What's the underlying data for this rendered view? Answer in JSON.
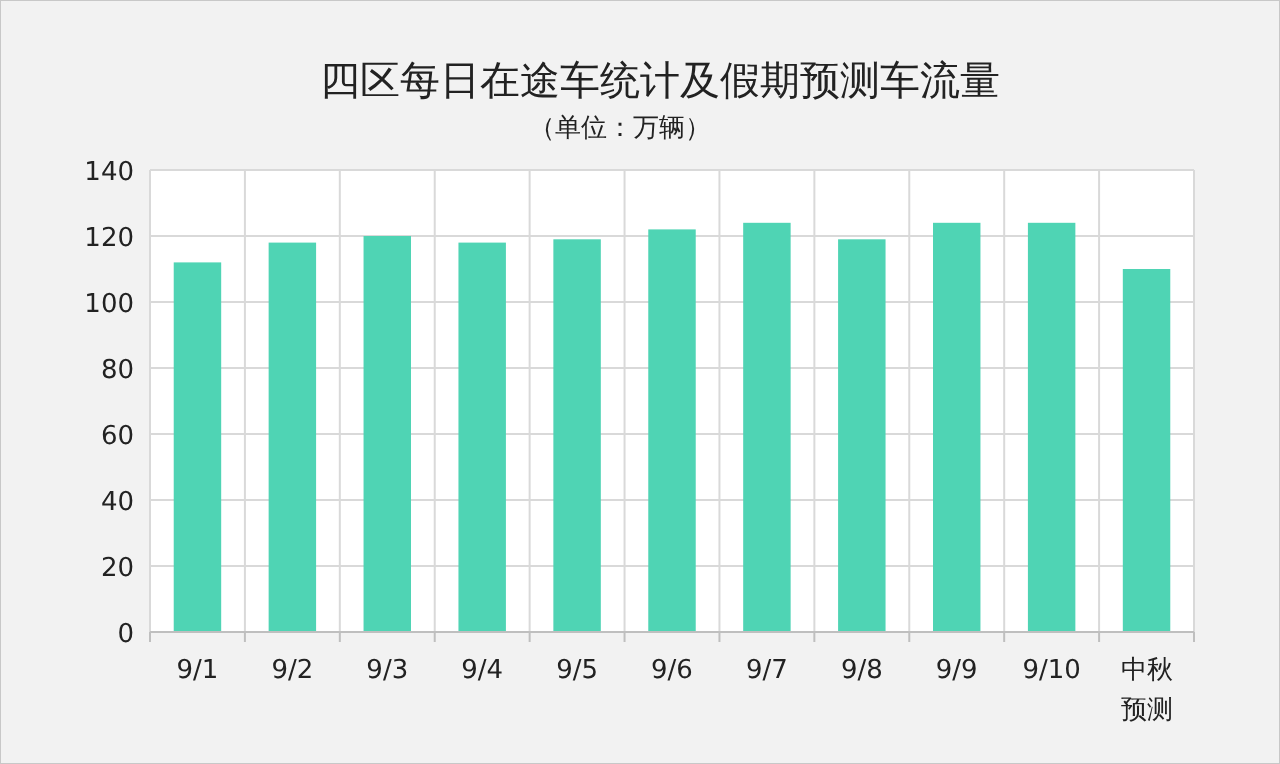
{
  "chart_data": {
    "type": "bar",
    "title": "四区每日在途车统计及假期预测车流量",
    "subtitle": "（单位：万辆）",
    "categories": [
      "9/1",
      "9/2",
      "9/3",
      "9/4",
      "9/5",
      "9/6",
      "9/7",
      "9/8",
      "9/9",
      "9/10",
      "中秋预测"
    ],
    "values": [
      112,
      118,
      120,
      118,
      119,
      122,
      124,
      119,
      124,
      124,
      110
    ],
    "color": "#4fd4b4",
    "ylim": [
      0,
      140
    ],
    "yticks": [
      0,
      20,
      40,
      60,
      80,
      100,
      120,
      140
    ],
    "grid": true
  }
}
